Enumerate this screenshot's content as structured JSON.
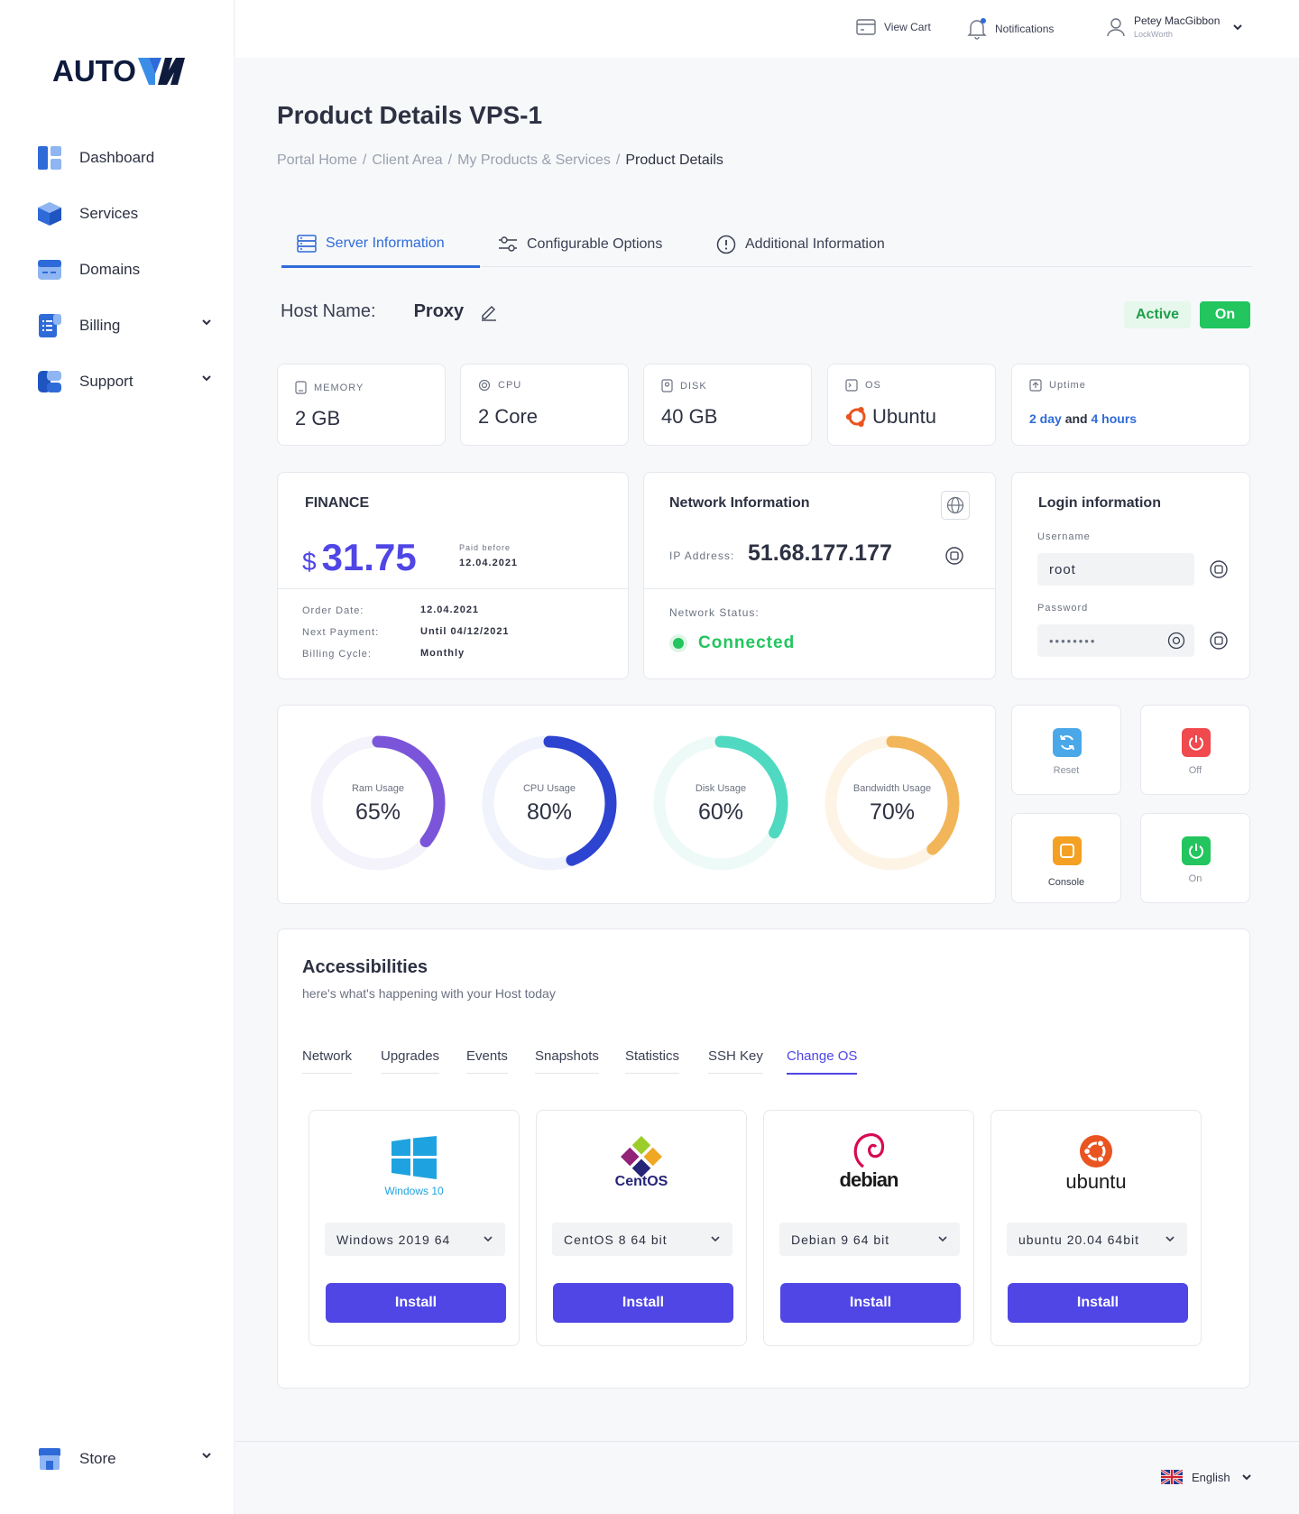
{
  "brand": {
    "logo_text": "AUTO",
    "logo_accent": "VM",
    "accent_color": "#2f6bd8",
    "dark_color": "#0f1b3d"
  },
  "sidebar": {
    "items": [
      {
        "label": "Dashboard",
        "icon": "dashboard-icon"
      },
      {
        "label": "Services",
        "icon": "services-icon"
      },
      {
        "label": "Domains",
        "icon": "domains-icon"
      },
      {
        "label": "Billing",
        "icon": "billing-icon",
        "expandable": true
      },
      {
        "label": "Support",
        "icon": "support-icon",
        "expandable": true
      }
    ],
    "store": {
      "label": "Store",
      "icon": "store-icon",
      "expandable": true
    }
  },
  "topbar": {
    "cart_label": "View Cart",
    "notifications_label": "Notifications",
    "user_name": "Petey MacGibbon",
    "user_org": "LockWorth"
  },
  "page": {
    "title": "Product Details VPS-1",
    "breadcrumb": [
      "Portal Home",
      "Client Area",
      "My Products & Services",
      "Product Details"
    ],
    "tabs": [
      {
        "label": "Server Information",
        "active": true
      },
      {
        "label": "Configurable Options",
        "active": false
      },
      {
        "label": "Additional Information",
        "active": false
      }
    ]
  },
  "host": {
    "label": "Host Name:",
    "value": "Proxy",
    "status": "Active",
    "power": "On"
  },
  "specs": {
    "memory": {
      "label": "MEMORY",
      "value": "2 GB"
    },
    "cpu": {
      "label": "CPU",
      "value": "2 Core"
    },
    "disk": {
      "label": "DISK",
      "value": "40 GB"
    },
    "os": {
      "label": "OS",
      "value": "Ubuntu"
    },
    "uptime": {
      "label": "Uptime",
      "days": "2 day",
      "and": "and",
      "hours": "4 hours"
    }
  },
  "finance": {
    "title": "FINANCE",
    "currency": "$",
    "amount": "31.75",
    "paid_before_label": "Paid before",
    "paid_before_date": "12.04.2021",
    "order_date_label": "Order Date:",
    "order_date": "12.04.2021",
    "next_payment_label": "Next Payment:",
    "next_payment": "Until 04/12/2021",
    "billing_cycle_label": "Billing Cycle:",
    "billing_cycle": "Monthly"
  },
  "network": {
    "title": "Network Information",
    "ip_label": "IP Address:",
    "ip": "51.68.177.177",
    "status_label": "Network Status:",
    "status": "Connected"
  },
  "login": {
    "title": "Login information",
    "username_label": "Username",
    "username": "root",
    "password_label": "Password",
    "password_mask": "••••••••"
  },
  "usage": [
    {
      "label": "Ram Usage",
      "value": "65%",
      "percent": 65,
      "color": "#7b55d9",
      "track": "#f4f2fb"
    },
    {
      "label": "CPU Usage",
      "value": "80%",
      "percent": 80,
      "color": "#2c44cf",
      "track": "#f0f2fc"
    },
    {
      "label": "Disk Usage",
      "value": "60%",
      "percent": 60,
      "color": "#4fd9c0",
      "track": "#eefaf7"
    },
    {
      "label": "Bandwidth Usage",
      "value": "70%",
      "percent": 70,
      "color": "#f2b55a",
      "track": "#fdf4e6"
    }
  ],
  "actions": {
    "reset": {
      "label": "Reset",
      "color": "#4aa8e8"
    },
    "off": {
      "label": "Off",
      "color": "#f0494e"
    },
    "console": {
      "label": "Console",
      "color": "#f4a022"
    },
    "on": {
      "label": "On",
      "color": "#22c55e"
    }
  },
  "accessibilities": {
    "title": "Accessibilities",
    "subtitle": "here's what's happening with your Host today",
    "tabs": [
      "Network",
      "Upgrades",
      "Events",
      "Snapshots",
      "Statistics",
      "SSH Key",
      "Change OS"
    ],
    "active_tab": "Change OS",
    "os_options": [
      {
        "logo": "windows-logo",
        "logo_text": "Windows 10",
        "selected": "Windows 2019 64",
        "install_label": "Install"
      },
      {
        "logo": "centos-logo",
        "logo_text": "CentOS",
        "selected": "CentOS 8 64 bit",
        "install_label": "Install"
      },
      {
        "logo": "debian-logo",
        "logo_text": "debian",
        "selected": "Debian 9 64 bit",
        "install_label": "Install"
      },
      {
        "logo": "ubuntu-logo",
        "logo_text": "ubuntu",
        "selected": "ubuntu 20.04 64bit",
        "install_label": "Install"
      }
    ]
  },
  "footer": {
    "language": "English"
  }
}
